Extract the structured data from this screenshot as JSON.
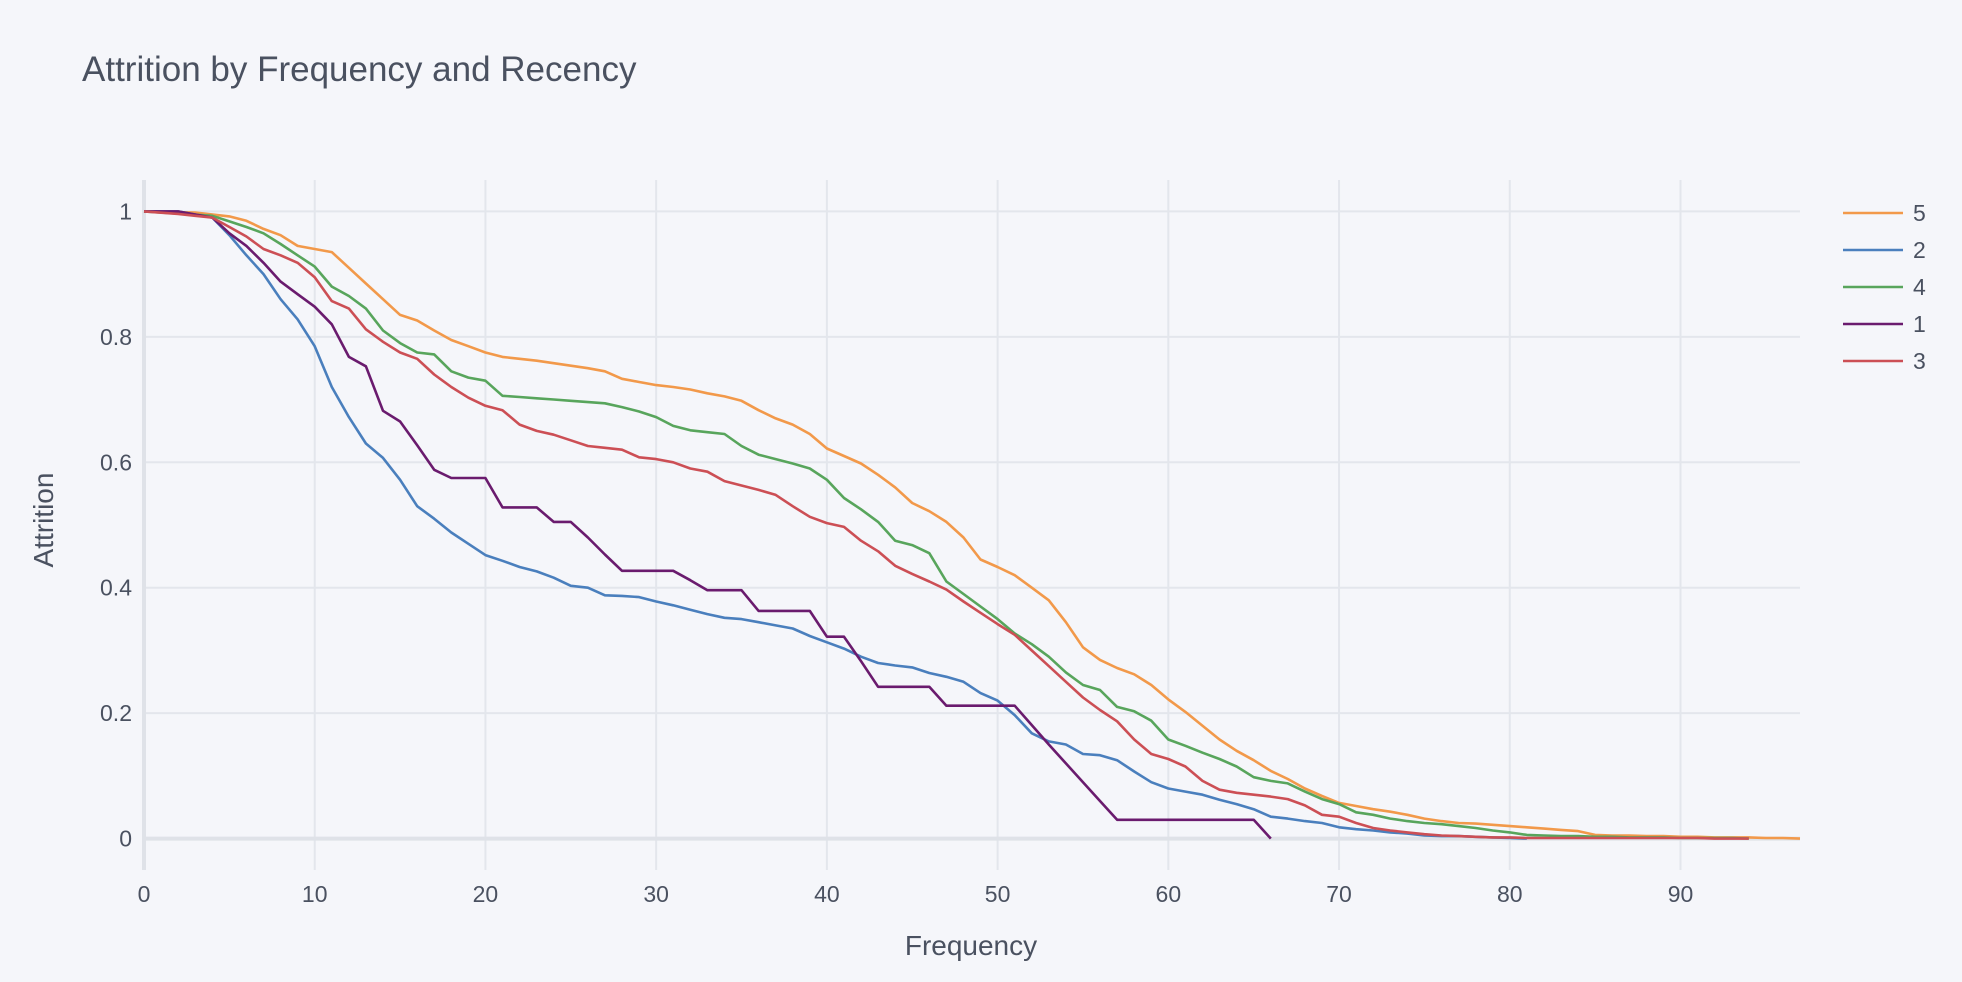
{
  "chart_data": {
    "type": "line",
    "title": "Attrition by Frequency and Recency",
    "xlabel": "Frequency",
    "ylabel": "Attrition",
    "xlim": [
      0,
      97
    ],
    "ylim": [
      -0.05,
      1.05
    ],
    "x_ticks": [
      0,
      10,
      20,
      30,
      40,
      50,
      60,
      70,
      80,
      90
    ],
    "y_ticks": [
      0,
      0.2,
      0.4,
      0.6,
      0.8,
      1
    ],
    "y_tick_labels": [
      "0",
      "0.2",
      "0.4",
      "0.6",
      "0.8",
      "1"
    ],
    "grid": true,
    "legend_position": "top-right",
    "series": [
      {
        "name": "5",
        "color": "#f2994a",
        "x": [
          0,
          3,
          5,
          6,
          7,
          8,
          9,
          10,
          11,
          12,
          13,
          14,
          15,
          16,
          17,
          18,
          19,
          20,
          21,
          22,
          23,
          24,
          25,
          26,
          27,
          28,
          29,
          30,
          31,
          32,
          33,
          34,
          35,
          36,
          37,
          38,
          39,
          40,
          41,
          42,
          43,
          44,
          45,
          46,
          47,
          48,
          49,
          50,
          51,
          52,
          53,
          54,
          55,
          56,
          57,
          58,
          59,
          60,
          61,
          62,
          63,
          64,
          65,
          66,
          67,
          68,
          69,
          70,
          71,
          72,
          73,
          74,
          75,
          76,
          77,
          78,
          79,
          80,
          81,
          82,
          83,
          84,
          85,
          86,
          87,
          88,
          89,
          90,
          91,
          92,
          93,
          94,
          95,
          96,
          97
        ],
        "y": [
          1.0,
          0.998,
          0.992,
          0.985,
          0.972,
          0.962,
          0.945,
          0.94,
          0.935,
          0.91,
          0.885,
          0.86,
          0.835,
          0.826,
          0.81,
          0.795,
          0.785,
          0.775,
          0.768,
          0.765,
          0.762,
          0.758,
          0.754,
          0.75,
          0.745,
          0.733,
          0.728,
          0.723,
          0.72,
          0.716,
          0.71,
          0.705,
          0.698,
          0.683,
          0.67,
          0.66,
          0.645,
          0.622,
          0.61,
          0.598,
          0.58,
          0.56,
          0.535,
          0.522,
          0.505,
          0.48,
          0.445,
          0.433,
          0.42,
          0.4,
          0.38,
          0.345,
          0.305,
          0.285,
          0.272,
          0.262,
          0.245,
          0.222,
          0.202,
          0.18,
          0.158,
          0.14,
          0.125,
          0.108,
          0.095,
          0.08,
          0.068,
          0.057,
          0.052,
          0.047,
          0.043,
          0.038,
          0.032,
          0.028,
          0.025,
          0.024,
          0.022,
          0.02,
          0.018,
          0.016,
          0.014,
          0.012,
          0.006,
          0.005,
          0.005,
          0.004,
          0.004,
          0.003,
          0.003,
          0.002,
          0.002,
          0.002,
          0.001,
          0.001,
          0.0
        ]
      },
      {
        "name": "2",
        "color": "#4a7fbd",
        "x": [
          0,
          2,
          3,
          4,
          5,
          6,
          7,
          8,
          9,
          10,
          11,
          12,
          13,
          14,
          15,
          16,
          17,
          18,
          19,
          20,
          21,
          22,
          23,
          24,
          25,
          26,
          27,
          28,
          29,
          30,
          31,
          32,
          33,
          34,
          35,
          36,
          37,
          38,
          39,
          40,
          41,
          42,
          43,
          44,
          45,
          46,
          47,
          48,
          49,
          50,
          51,
          52,
          53,
          54,
          55,
          56,
          57,
          58,
          59,
          60,
          61,
          62,
          63,
          64,
          65,
          66,
          67,
          68,
          69,
          70,
          71,
          72,
          73,
          74,
          75,
          76,
          77,
          78,
          79,
          80,
          81
        ],
        "y": [
          1.0,
          1.0,
          0.995,
          0.99,
          0.962,
          0.93,
          0.9,
          0.86,
          0.828,
          0.785,
          0.72,
          0.672,
          0.63,
          0.607,
          0.572,
          0.53,
          0.51,
          0.488,
          0.47,
          0.452,
          0.443,
          0.433,
          0.426,
          0.416,
          0.403,
          0.4,
          0.388,
          0.387,
          0.385,
          0.378,
          0.372,
          0.365,
          0.358,
          0.352,
          0.35,
          0.345,
          0.34,
          0.335,
          0.323,
          0.313,
          0.303,
          0.29,
          0.28,
          0.276,
          0.273,
          0.264,
          0.258,
          0.25,
          0.232,
          0.22,
          0.197,
          0.168,
          0.155,
          0.15,
          0.135,
          0.133,
          0.125,
          0.107,
          0.09,
          0.08,
          0.075,
          0.07,
          0.062,
          0.055,
          0.047,
          0.035,
          0.032,
          0.028,
          0.025,
          0.018,
          0.015,
          0.013,
          0.01,
          0.008,
          0.005,
          0.004,
          0.004,
          0.003,
          0.002,
          0.001,
          0.0
        ]
      },
      {
        "name": "4",
        "color": "#58a55c",
        "x": [
          0,
          4,
          5,
          6,
          7,
          8,
          9,
          10,
          11,
          12,
          13,
          14,
          15,
          16,
          17,
          18,
          19,
          20,
          21,
          22,
          23,
          24,
          25,
          26,
          27,
          28,
          29,
          30,
          31,
          32,
          33,
          34,
          35,
          36,
          37,
          38,
          39,
          40,
          41,
          42,
          43,
          44,
          45,
          46,
          47,
          48,
          49,
          50,
          51,
          52,
          53,
          54,
          55,
          56,
          57,
          58,
          59,
          60,
          61,
          62,
          63,
          64,
          65,
          66,
          67,
          68,
          69,
          70,
          71,
          72,
          73,
          74,
          75,
          76,
          77,
          78,
          79,
          80,
          81,
          82,
          83,
          84,
          85,
          86,
          87,
          88,
          89,
          90,
          91,
          92,
          93,
          94
        ],
        "y": [
          1.0,
          0.993,
          0.984,
          0.975,
          0.965,
          0.948,
          0.93,
          0.912,
          0.88,
          0.865,
          0.845,
          0.81,
          0.79,
          0.775,
          0.772,
          0.745,
          0.735,
          0.73,
          0.706,
          0.704,
          0.702,
          0.7,
          0.698,
          0.696,
          0.694,
          0.688,
          0.681,
          0.672,
          0.658,
          0.651,
          0.648,
          0.645,
          0.626,
          0.612,
          0.605,
          0.598,
          0.59,
          0.572,
          0.543,
          0.525,
          0.505,
          0.475,
          0.468,
          0.455,
          0.41,
          0.39,
          0.37,
          0.35,
          0.327,
          0.31,
          0.29,
          0.265,
          0.245,
          0.237,
          0.21,
          0.203,
          0.188,
          0.158,
          0.148,
          0.137,
          0.127,
          0.115,
          0.098,
          0.092,
          0.088,
          0.075,
          0.063,
          0.055,
          0.042,
          0.038,
          0.032,
          0.028,
          0.025,
          0.023,
          0.02,
          0.017,
          0.013,
          0.01,
          0.006,
          0.005,
          0.004,
          0.004,
          0.003,
          0.003,
          0.002,
          0.002,
          0.002,
          0.001,
          0.001,
          0.001,
          0.001,
          0.0
        ]
      },
      {
        "name": "1",
        "color": "#6a1b6e",
        "x": [
          0,
          2,
          4,
          5,
          6,
          7,
          8,
          9,
          10,
          11,
          12,
          13,
          14,
          15,
          16,
          17,
          18,
          19,
          20,
          21,
          22,
          23,
          24,
          25,
          26,
          27,
          28,
          29,
          30,
          31,
          32,
          33,
          34,
          35,
          36,
          37,
          38,
          39,
          40,
          41,
          42,
          43,
          44,
          45,
          46,
          47,
          48,
          49,
          50,
          51,
          52,
          53,
          54,
          55,
          56,
          57,
          58,
          59,
          60,
          61,
          62,
          63,
          64,
          65,
          66
        ],
        "y": [
          1.0,
          1.0,
          0.99,
          0.965,
          0.945,
          0.918,
          0.888,
          0.868,
          0.848,
          0.82,
          0.768,
          0.753,
          0.682,
          0.665,
          0.627,
          0.588,
          0.575,
          0.575,
          0.575,
          0.528,
          0.528,
          0.528,
          0.505,
          0.505,
          0.48,
          0.453,
          0.427,
          0.427,
          0.427,
          0.427,
          0.412,
          0.396,
          0.396,
          0.396,
          0.363,
          0.363,
          0.363,
          0.363,
          0.322,
          0.322,
          0.283,
          0.242,
          0.242,
          0.242,
          0.242,
          0.212,
          0.212,
          0.212,
          0.212,
          0.212,
          0.181,
          0.15,
          0.12,
          0.09,
          0.06,
          0.03,
          0.03,
          0.03,
          0.03,
          0.03,
          0.03,
          0.03,
          0.03,
          0.03,
          0.0
        ]
      },
      {
        "name": "3",
        "color": "#cc4f55",
        "x": [
          0,
          2,
          3,
          4,
          5,
          6,
          7,
          8,
          9,
          10,
          11,
          12,
          13,
          14,
          15,
          16,
          17,
          18,
          19,
          20,
          21,
          22,
          23,
          24,
          25,
          26,
          27,
          28,
          29,
          30,
          31,
          32,
          33,
          34,
          35,
          36,
          37,
          38,
          39,
          40,
          41,
          42,
          43,
          44,
          45,
          46,
          47,
          48,
          49,
          50,
          51,
          52,
          53,
          54,
          55,
          56,
          57,
          58,
          59,
          60,
          61,
          62,
          63,
          64,
          65,
          66,
          67,
          68,
          69,
          70,
          71,
          72,
          73,
          74,
          75,
          76,
          77,
          78,
          79,
          80,
          81,
          82,
          83,
          84,
          85,
          86,
          87,
          88,
          89,
          90,
          91,
          92,
          93,
          94
        ],
        "y": [
          1.0,
          0.996,
          0.993,
          0.99,
          0.975,
          0.96,
          0.94,
          0.93,
          0.918,
          0.895,
          0.857,
          0.845,
          0.812,
          0.792,
          0.775,
          0.765,
          0.74,
          0.72,
          0.703,
          0.69,
          0.683,
          0.66,
          0.65,
          0.644,
          0.635,
          0.626,
          0.623,
          0.62,
          0.608,
          0.605,
          0.6,
          0.59,
          0.585,
          0.57,
          0.563,
          0.556,
          0.548,
          0.53,
          0.513,
          0.503,
          0.497,
          0.475,
          0.458,
          0.435,
          0.422,
          0.41,
          0.397,
          0.378,
          0.36,
          0.342,
          0.325,
          0.3,
          0.275,
          0.25,
          0.225,
          0.205,
          0.187,
          0.158,
          0.135,
          0.127,
          0.115,
          0.092,
          0.078,
          0.073,
          0.07,
          0.067,
          0.063,
          0.053,
          0.038,
          0.035,
          0.025,
          0.017,
          0.013,
          0.01,
          0.007,
          0.005,
          0.004,
          0.003,
          0.002,
          0.002,
          0.001,
          0.001,
          0.001,
          0.001,
          0.001,
          0.001,
          0.001,
          0.001,
          0.001,
          0.001,
          0.001,
          0.0,
          0.0,
          0.0
        ]
      }
    ]
  }
}
